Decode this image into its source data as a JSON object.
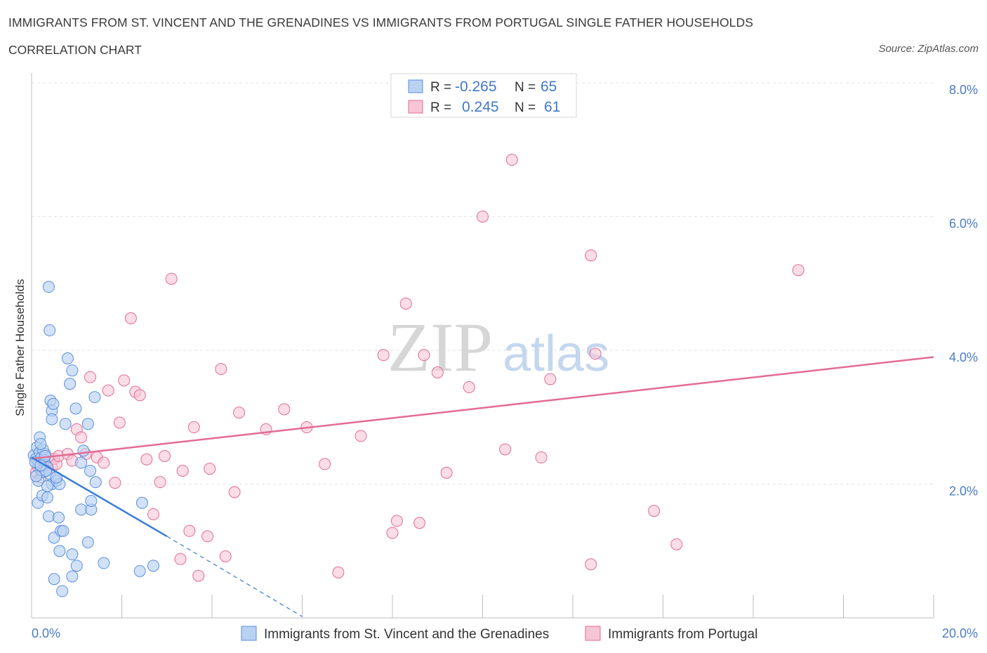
{
  "title": "IMMIGRANTS FROM ST. VINCENT AND THE GRENADINES VS IMMIGRANTS FROM PORTUGAL SINGLE FATHER HOUSEHOLDS",
  "subtitle": "CORRELATION CHART",
  "source": "Source: ZipAtlas.com",
  "watermark": {
    "zip": "ZIP",
    "atlas": "atlas"
  },
  "legend_top": [
    {
      "r_label": "R =",
      "r_value": "-0.265",
      "n_label": "N =",
      "n_value": "65"
    },
    {
      "r_label": "R =",
      "r_value": "0.245",
      "n_label": "N =",
      "n_value": "61"
    }
  ],
  "chart_data": {
    "type": "scatter",
    "title": "IMMIGRANTS FROM ST. VINCENT AND THE GRENADINES VS IMMIGRANTS FROM PORTUGAL SINGLE FATHER HOUSEHOLDS",
    "xlabel": "",
    "ylabel": "Single Father Households",
    "xlim": [
      0,
      20
    ],
    "ylim": [
      0,
      8
    ],
    "x_tick_labels": [
      "0.0%",
      "20.0%"
    ],
    "y_ticks": [
      2,
      4,
      6,
      8
    ],
    "y_tick_labels": [
      "2.0%",
      "4.0%",
      "6.0%",
      "8.0%"
    ],
    "grid": true,
    "legend_position": "bottom-center",
    "colors": {
      "vincent": "#5b8fdc",
      "vincent_fill": "#b9d1f3",
      "portugal": "#e36b95",
      "portugal_fill": "#f6c6d6",
      "axis_text": "#4a7cc7"
    },
    "series": [
      {
        "name": "Immigrants from St. Vincent and the Grenadines",
        "r": -0.265,
        "n": 65,
        "trend": {
          "x_start": 0.0,
          "y_start": 2.4,
          "x_end": 3.0,
          "y_end": 1.22,
          "dash_x_end": 6.0,
          "dash_y_end": 0.02
        },
        "points": [
          [
            0.05,
            2.43
          ],
          [
            0.1,
            2.38
          ],
          [
            0.15,
            2.3
          ],
          [
            0.2,
            2.22
          ],
          [
            0.25,
            2.18
          ],
          [
            0.08,
            2.33
          ],
          [
            0.12,
            2.55
          ],
          [
            0.18,
            2.48
          ],
          [
            0.22,
            2.4
          ],
          [
            0.28,
            2.35
          ],
          [
            0.3,
            2.45
          ],
          [
            0.35,
            2.25
          ],
          [
            0.4,
            2.15
          ],
          [
            0.15,
            2.05
          ],
          [
            0.18,
            2.7
          ],
          [
            0.1,
            2.12
          ],
          [
            0.25,
            2.52
          ],
          [
            0.32,
            2.2
          ],
          [
            0.14,
            1.72
          ],
          [
            0.24,
            1.83
          ],
          [
            0.35,
            1.8
          ],
          [
            0.45,
            2.0
          ],
          [
            0.55,
            2.05
          ],
          [
            0.62,
            2.0
          ],
          [
            0.38,
            1.52
          ],
          [
            0.5,
            1.2
          ],
          [
            0.6,
            1.5
          ],
          [
            0.65,
            1.3
          ],
          [
            0.7,
            1.3
          ],
          [
            0.62,
            1.0
          ],
          [
            0.9,
            0.95
          ],
          [
            1.0,
            0.78
          ],
          [
            0.5,
            0.58
          ],
          [
            0.9,
            0.62
          ],
          [
            0.68,
            0.4
          ],
          [
            0.42,
            3.25
          ],
          [
            0.45,
            3.1
          ],
          [
            0.48,
            3.2
          ],
          [
            0.45,
            2.97
          ],
          [
            0.75,
            2.9
          ],
          [
            0.85,
            3.5
          ],
          [
            0.9,
            3.7
          ],
          [
            0.8,
            3.88
          ],
          [
            0.98,
            3.13
          ],
          [
            1.25,
            2.9
          ],
          [
            1.4,
            3.3
          ],
          [
            0.4,
            4.3
          ],
          [
            0.38,
            4.95
          ],
          [
            1.15,
            2.5
          ],
          [
            1.3,
            2.2
          ],
          [
            1.1,
            2.32
          ],
          [
            1.1,
            1.62
          ],
          [
            1.32,
            1.62
          ],
          [
            1.32,
            1.75
          ],
          [
            1.42,
            2.03
          ],
          [
            1.25,
            1.13
          ],
          [
            1.6,
            0.82
          ],
          [
            2.45,
            1.72
          ],
          [
            2.4,
            0.7
          ],
          [
            2.7,
            0.78
          ],
          [
            0.2,
            2.6
          ],
          [
            0.3,
            2.42
          ],
          [
            0.55,
            2.1
          ],
          [
            0.35,
            1.97
          ],
          [
            0.2,
            2.28
          ]
        ]
      },
      {
        "name": "Immigrants from Portugal",
        "r": 0.245,
        "n": 61,
        "trend": {
          "x_start": 0.0,
          "y_start": 2.38,
          "x_end": 20.0,
          "y_end": 3.9
        },
        "points": [
          [
            0.1,
            2.18
          ],
          [
            0.15,
            2.25
          ],
          [
            0.2,
            2.1
          ],
          [
            0.25,
            2.3
          ],
          [
            0.3,
            2.2
          ],
          [
            0.35,
            2.28
          ],
          [
            0.4,
            2.35
          ],
          [
            0.45,
            2.25
          ],
          [
            0.5,
            2.38
          ],
          [
            0.55,
            2.3
          ],
          [
            0.6,
            2.42
          ],
          [
            0.8,
            2.45
          ],
          [
            0.9,
            2.35
          ],
          [
            1.0,
            2.82
          ],
          [
            1.1,
            2.7
          ],
          [
            1.2,
            2.45
          ],
          [
            1.3,
            3.6
          ],
          [
            1.45,
            2.4
          ],
          [
            1.6,
            2.32
          ],
          [
            1.7,
            3.4
          ],
          [
            1.85,
            2.02
          ],
          [
            1.95,
            2.92
          ],
          [
            2.05,
            3.55
          ],
          [
            2.2,
            4.48
          ],
          [
            2.3,
            3.38
          ],
          [
            2.4,
            3.33
          ],
          [
            2.55,
            2.37
          ],
          [
            2.7,
            1.55
          ],
          [
            2.85,
            2.03
          ],
          [
            2.95,
            2.42
          ],
          [
            3.1,
            5.07
          ],
          [
            3.3,
            0.88
          ],
          [
            3.35,
            2.2
          ],
          [
            3.5,
            1.3
          ],
          [
            3.6,
            2.85
          ],
          [
            3.7,
            0.63
          ],
          [
            3.9,
            1.22
          ],
          [
            3.95,
            2.23
          ],
          [
            4.2,
            3.72
          ],
          [
            4.3,
            0.92
          ],
          [
            4.5,
            1.88
          ],
          [
            4.6,
            3.07
          ],
          [
            5.2,
            2.82
          ],
          [
            5.6,
            3.12
          ],
          [
            6.1,
            2.85
          ],
          [
            6.5,
            2.3
          ],
          [
            6.8,
            0.68
          ],
          [
            7.3,
            2.72
          ],
          [
            7.8,
            3.93
          ],
          [
            8.0,
            1.27
          ],
          [
            8.1,
            1.45
          ],
          [
            8.3,
            4.7
          ],
          [
            8.6,
            1.42
          ],
          [
            8.7,
            3.93
          ],
          [
            9.0,
            3.67
          ],
          [
            9.2,
            2.17
          ],
          [
            9.7,
            3.45
          ],
          [
            10.0,
            6.0
          ],
          [
            10.5,
            2.52
          ],
          [
            11.3,
            2.4
          ],
          [
            10.65,
            6.85
          ]
        ]
      }
    ]
  },
  "extra_points_portugal": [
    [
      11.5,
      3.57
    ],
    [
      12.4,
      0.8
    ],
    [
      12.4,
      5.42
    ],
    [
      12.5,
      3.95
    ],
    [
      13.8,
      1.6
    ],
    [
      14.3,
      1.1
    ],
    [
      17.0,
      5.2
    ]
  ],
  "legend_bottom": [
    {
      "label": "Immigrants from St. Vincent and the Grenadines"
    },
    {
      "label": "Immigrants from Portugal"
    }
  ]
}
